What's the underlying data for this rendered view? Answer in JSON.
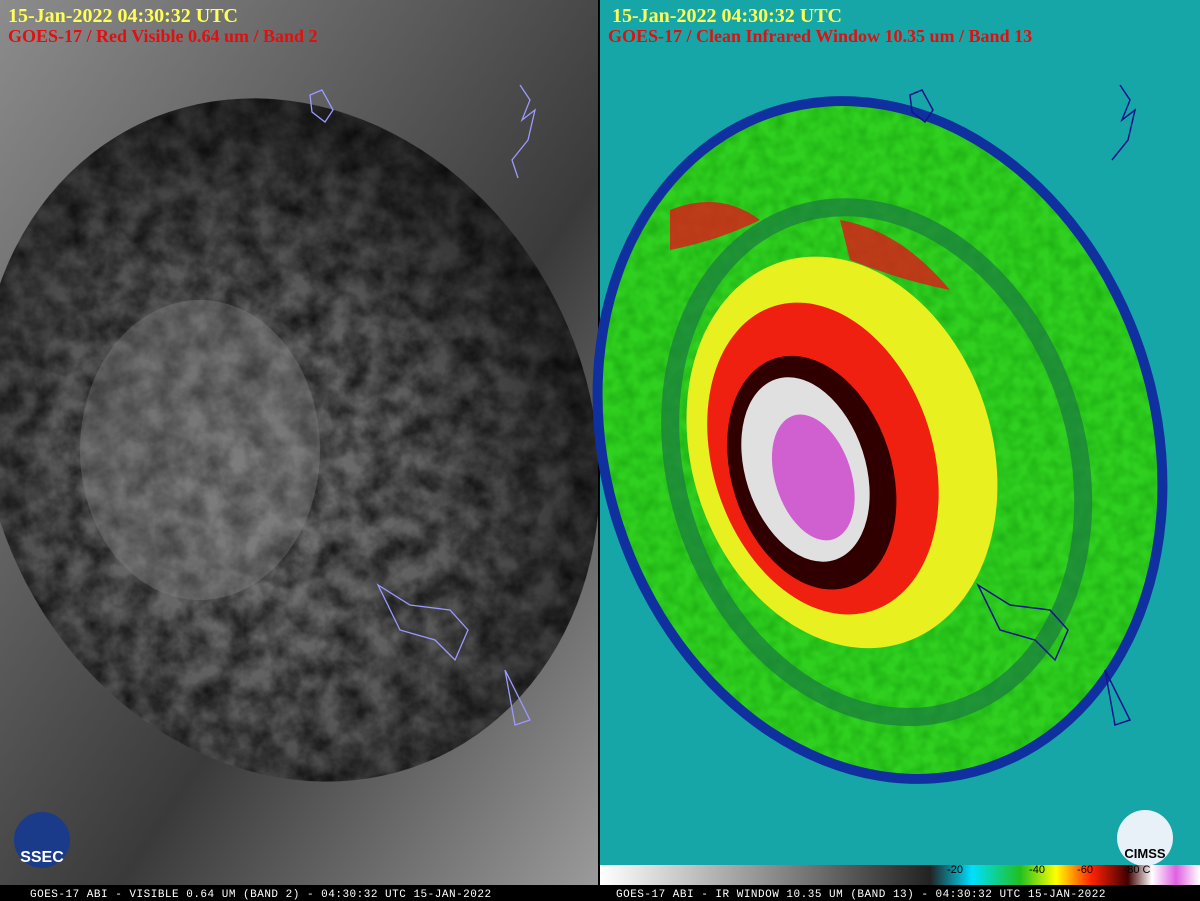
{
  "left_panel": {
    "timestamp": "15-Jan-2022  04:30:32 UTC",
    "product": "GOES-17 / Red Visible 0.64 um / Band 2",
    "logo": "SSEC",
    "footer": "GOES-17 ABI - VISIBLE 0.64 UM (BAND 2) - 04:30:32 UTC 15-JAN-2022"
  },
  "right_panel": {
    "timestamp": "15-Jan-2022  04:30:32 UTC",
    "product": "GOES-17 / Clean Infrared Window 10.35 um / Band 13",
    "logo": "CIMSS",
    "colorbar_labels": [
      "-20",
      "-40",
      "-60",
      "-80 C"
    ],
    "footer": "GOES-17 ABI - IR WINDOW 10.35 UM (BAND 13) - 04:30:32 UTC 15-JAN-2022"
  }
}
